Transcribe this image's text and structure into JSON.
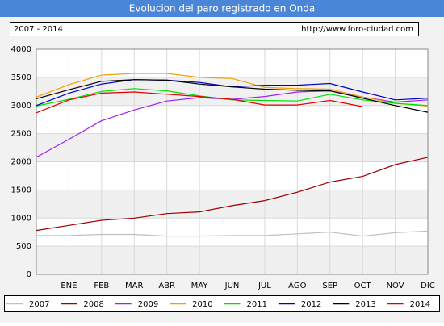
{
  "chart_data": {
    "type": "line",
    "title": "Evolucion del paro registrado en Onda",
    "subtitle": "2007 - 2014",
    "source": "http://www.foro-ciudad.com",
    "categories": [
      null,
      "ENE",
      "FEB",
      "MAR",
      "ABR",
      "MAY",
      "JUN",
      "JUL",
      "AGO",
      "SEP",
      "OCT",
      "NOV",
      "DIC"
    ],
    "series": [
      {
        "name": "2007",
        "color": "#c0c0c0",
        "values": [
          690,
          690,
          710,
          710,
          680,
          680,
          690,
          690,
          720,
          750,
          680,
          740,
          770
        ]
      },
      {
        "name": "2008",
        "color": "#a00000",
        "values": [
          780,
          870,
          960,
          1000,
          1080,
          1110,
          1220,
          1310,
          1460,
          1640,
          1740,
          1950,
          2080
        ]
      },
      {
        "name": "2009",
        "color": "#a020f0",
        "values": [
          2080,
          2400,
          2730,
          2920,
          3080,
          3140,
          3110,
          3160,
          3240,
          3260,
          3150,
          3060,
          3100
        ]
      },
      {
        "name": "2010",
        "color": "#f0a000",
        "values": [
          3150,
          3370,
          3540,
          3570,
          3570,
          3500,
          3480,
          3320,
          3300,
          3290,
          3150,
          3040,
          2990
        ]
      },
      {
        "name": "2011",
        "color": "#00e000",
        "values": [
          2990,
          3110,
          3250,
          3300,
          3260,
          3170,
          3100,
          3090,
          3080,
          3200,
          3100,
          3040,
          3000
        ]
      },
      {
        "name": "2012",
        "color": "#0000c0",
        "values": [
          3000,
          3220,
          3380,
          3460,
          3450,
          3410,
          3330,
          3360,
          3360,
          3390,
          3240,
          3100,
          3130
        ]
      },
      {
        "name": "2013",
        "color": "#000000",
        "values": [
          3120,
          3280,
          3430,
          3460,
          3450,
          3380,
          3330,
          3290,
          3270,
          3260,
          3130,
          3000,
          2880
        ]
      },
      {
        "name": "2014",
        "color": "#e00000",
        "values": [
          2870,
          3100,
          3220,
          3240,
          3200,
          3160,
          3110,
          3010,
          3010,
          3090,
          2980,
          null,
          null
        ]
      }
    ],
    "ylim": [
      0,
      4000
    ],
    "yticks": [
      0,
      500,
      1000,
      1500,
      2000,
      2500,
      3000,
      3500,
      4000
    ],
    "grid": true
  }
}
